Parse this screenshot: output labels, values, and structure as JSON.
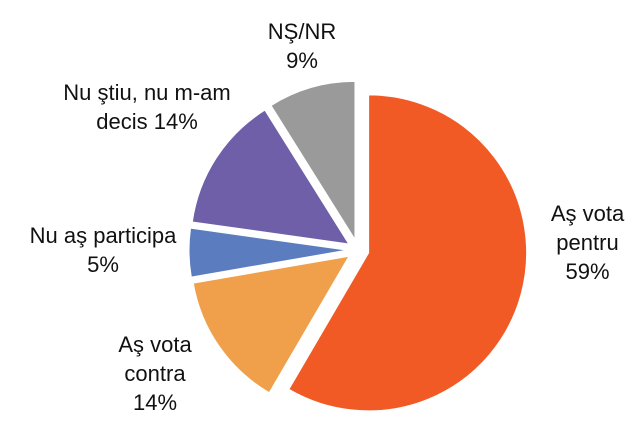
{
  "chart_data": {
    "type": "pie",
    "categories": [
      "Aş vota pentru",
      "Aş vota contra",
      "Nu aş participa",
      "Nu ştiu, nu m-am decis",
      "NŞ/NR"
    ],
    "values": [
      59,
      14,
      5,
      14,
      9
    ],
    "value_labels": [
      "59%",
      "14%",
      "5%",
      "14%",
      "9%"
    ],
    "colors": [
      "#f15a24",
      "#f0a04b",
      "#5b7dc0",
      "#6f5fa8",
      "#9a9a9a"
    ]
  }
}
